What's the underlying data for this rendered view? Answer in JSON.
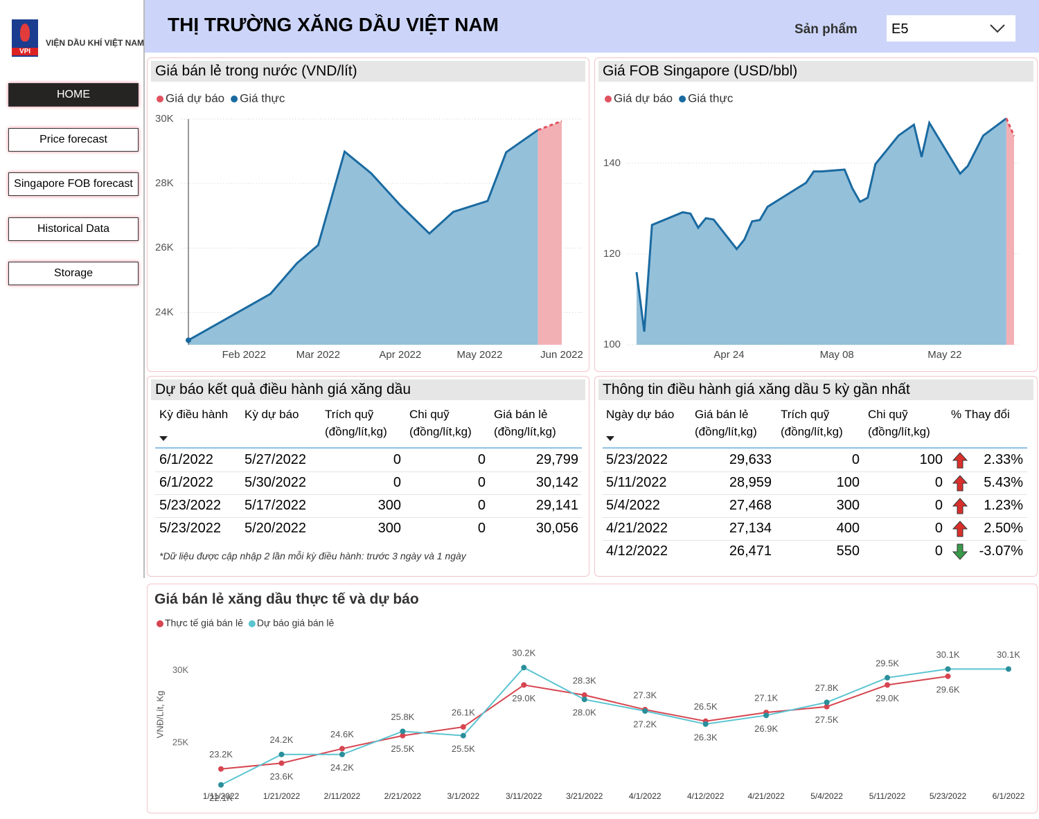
{
  "sidebar": {
    "logo_badge": "VPI",
    "logo_text": "VIỆN DẦU KHÍ VIỆT NAM",
    "nav": [
      "HOME",
      "Price forecast",
      "Singapore FOB forecast",
      "Historical Data",
      "Storage"
    ]
  },
  "header": {
    "title": "THỊ TRƯỜNG XĂNG DẦU VIỆT NAM",
    "filter_label": "Sản phẩm",
    "filter_value": "E5"
  },
  "chart_data": [
    {
      "type": "area",
      "title": "Giá bán lẻ trong nước (VND/lít)",
      "series": [
        {
          "name": "Giá dự báo",
          "color": "#e0525f",
          "fill": "#f2b0b4",
          "dashed": true,
          "x": [
            "2022-05-23",
            "2022-06-01"
          ],
          "values": [
            29660,
            29940
          ]
        },
        {
          "name": "Giá thực",
          "color": "#1a6aa0",
          "fill": "#94c0da",
          "x": [
            "2022-01-11",
            "2022-02-11",
            "2022-02-21",
            "2022-03-01",
            "2022-03-11",
            "2022-03-21",
            "2022-04-01",
            "2022-04-12",
            "2022-04-21",
            "2022-05-04",
            "2022-05-11",
            "2022-05-23"
          ],
          "values": [
            23140,
            24580,
            25530,
            26090,
            28990,
            28320,
            27330,
            26450,
            27120,
            27460,
            28970,
            29660
          ]
        }
      ],
      "xlim": [
        "2022-01-11",
        "2022-06-01"
      ],
      "xticks": [
        {
          "value": "2022-02-01",
          "label": "Feb 2022"
        },
        {
          "value": "2022-03-01",
          "label": "Mar 2022"
        },
        {
          "value": "2022-04-01",
          "label": "Apr 2022"
        },
        {
          "value": "2022-05-01",
          "label": "May 2022"
        },
        {
          "value": "2022-06-01",
          "label": "Jun 2022"
        }
      ],
      "ylim": [
        23000,
        30150
      ],
      "yticks": [
        {
          "value": 24000,
          "label": "24K"
        },
        {
          "value": 26000,
          "label": "26K"
        },
        {
          "value": 28000,
          "label": "28K"
        },
        {
          "value": 30000,
          "label": "30K"
        }
      ],
      "grid": true
    },
    {
      "type": "area",
      "title": "Giá FOB Singapore (USD/bbl)",
      "series": [
        {
          "name": "Giá dự báo",
          "color": "#e0525f",
          "fill": "#f2b0b4",
          "dashed": true,
          "x": [
            "2022-05-30",
            "2022-05-31"
          ],
          "values": [
            149.9,
            146.0
          ]
        },
        {
          "name": "Giá thực",
          "color": "#1a6aa0",
          "fill": "#94c0da",
          "x": [
            "2022-04-12",
            "2022-04-13",
            "2022-04-14",
            "2022-04-18",
            "2022-04-19",
            "2022-04-20",
            "2022-04-21",
            "2022-04-22",
            "2022-04-25",
            "2022-04-26",
            "2022-04-27",
            "2022-04-28",
            "2022-04-29",
            "2022-05-04",
            "2022-05-05",
            "2022-05-06",
            "2022-05-09",
            "2022-05-10",
            "2022-05-11",
            "2022-05-12",
            "2022-05-13",
            "2022-05-16",
            "2022-05-18",
            "2022-05-19",
            "2022-05-20",
            "2022-05-24",
            "2022-05-25",
            "2022-05-27",
            "2022-05-30"
          ],
          "values": [
            116.0,
            102.9,
            126.4,
            129.2,
            128.9,
            125.8,
            127.9,
            127.6,
            121.1,
            123.2,
            127.2,
            127.5,
            130.4,
            135.7,
            138.2,
            138.2,
            138.6,
            134.5,
            131.5,
            132.4,
            139.8,
            146.1,
            148.5,
            141.4,
            148.9,
            137.7,
            139.4,
            146.1,
            149.9
          ]
        }
      ],
      "xlim": [
        "2022-04-12",
        "2022-05-31"
      ],
      "xticks": [
        {
          "value": "2022-04-24",
          "label": "Apr 24"
        },
        {
          "value": "2022-05-08",
          "label": "May 08"
        },
        {
          "value": "2022-05-22",
          "label": "May 22"
        }
      ],
      "ylim": [
        100,
        150.8
      ],
      "yticks": [
        100,
        120,
        140
      ],
      "grid": true
    },
    {
      "type": "line",
      "title": "Giá bán lẻ xăng dầu thực tế và dự báo",
      "y_label": "VNĐ/Lít, Kg",
      "categories": [
        "1/11/2022",
        "1/21/2022",
        "2/11/2022",
        "2/21/2022",
        "3/1/2022",
        "3/11/2022",
        "3/21/2022",
        "4/1/2022",
        "4/12/2022",
        "4/21/2022",
        "5/4/2022",
        "5/11/2022",
        "5/23/2022",
        "6/1/2022"
      ],
      "series": [
        {
          "name": "Thực tế giá bán lẻ",
          "color": "#d64550",
          "values": [
            23200,
            23600,
            24600,
            25500,
            26100,
            29000,
            28300,
            27300,
            26500,
            27100,
            27500,
            29000,
            29600,
            null
          ],
          "value_labels": [
            "23.2K",
            "23.6K",
            "24.6K",
            "25.5K",
            "26.1K",
            "29.0K",
            "28.3K",
            "27.3K",
            "26.5K",
            "27.1K",
            "27.5K",
            "29.0K",
            "29.6K",
            null
          ]
        },
        {
          "name": "Dự báo giá bán lẻ",
          "color": "#5bc4d1",
          "values": [
            22100,
            24200,
            24200,
            25800,
            25500,
            30200,
            28000,
            27200,
            26300,
            26900,
            27800,
            29500,
            30100,
            30100
          ],
          "value_labels": [
            "22.1K",
            "24.2K",
            "24.2K",
            "25.8K",
            "25.5K",
            "30.2K",
            "28.0K",
            "27.2K",
            "26.3K",
            "26.9K",
            "27.8K",
            "29.5K",
            "30.1K",
            "30.1K"
          ]
        }
      ],
      "ylim": [
        21800,
        31600
      ],
      "yticks": [
        {
          "value": 25000,
          "label": "25K"
        },
        {
          "value": 30000,
          "label": "30K"
        }
      ]
    }
  ],
  "tables": [
    {
      "title": "Dự báo kết quả điều hành giá xăng dầu",
      "columns": [
        "Kỳ điều hành",
        "Kỳ dự báo",
        "Trích quỹ (đồng/lít,kg)",
        "Chi quỹ (đồng/lít,kg)",
        "Giá bán lẻ (đồng/lít,kg)"
      ],
      "rows": [
        [
          "6/1/2022",
          "5/27/2022",
          "0",
          "0",
          "29,799"
        ],
        [
          "6/1/2022",
          "5/30/2022",
          "0",
          "0",
          "30,142"
        ],
        [
          "5/23/2022",
          "5/17/2022",
          "300",
          "0",
          "29,141"
        ],
        [
          "5/23/2022",
          "5/20/2022",
          "300",
          "0",
          "30,056"
        ]
      ],
      "note": "*Dữ liệu được cập nhập 2 lần mỗi kỳ điều hành: trước 3 ngày và 1 ngày"
    },
    {
      "title": "Thông tin điều hành giá xăng dầu 5 kỳ gần nhất",
      "columns": [
        "Ngày dự báo",
        "Giá bán lẻ (đồng/lít,kg)",
        "Trích quỹ (đồng/lít,kg)",
        "Chi quỹ (đồng/lít,kg)",
        "% Thay đổi"
      ],
      "rows": [
        [
          "5/23/2022",
          "29,633",
          "0",
          "100",
          "2.33%"
        ],
        [
          "5/11/2022",
          "28,959",
          "100",
          "0",
          "5.43%"
        ],
        [
          "5/4/2022",
          "27,468",
          "300",
          "0",
          "1.23%"
        ],
        [
          "4/21/2022",
          "27,134",
          "400",
          "0",
          "2.50%"
        ],
        [
          "4/12/2022",
          "26,471",
          "550",
          "0",
          "-3.07%"
        ]
      ]
    }
  ]
}
